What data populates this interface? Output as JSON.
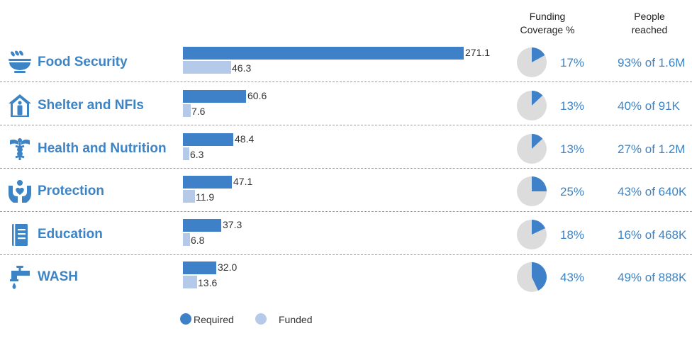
{
  "chart_data": {
    "type": "bar",
    "orientation": "horizontal",
    "categories": [
      "Food Security",
      "Shelter and NFIs",
      "Health and Nutrition",
      "Protection",
      "Education",
      "WASH"
    ],
    "series": [
      {
        "name": "Required",
        "values": [
          271.1,
          60.6,
          48.4,
          47.1,
          37.3,
          32.0
        ],
        "labels": [
          "271.1",
          "60.6",
          "48.4",
          "47.1",
          "37.3",
          "32.0"
        ],
        "color": "#3f81c9"
      },
      {
        "name": "Funded",
        "values": [
          46.3,
          7.6,
          6.3,
          11.9,
          6.8,
          13.6
        ],
        "labels": [
          "46.3",
          "7.6",
          "6.3",
          "11.9",
          "6.8",
          "13.6"
        ],
        "color": "#b5c9e8"
      }
    ],
    "xlim": [
      0,
      271.1
    ],
    "funding_coverage": {
      "header": "Funding Coverage %",
      "values": [
        17,
        13,
        13,
        25,
        18,
        43
      ],
      "labels": [
        "17%",
        "13%",
        "13%",
        "25%",
        "18%",
        "43%"
      ]
    },
    "people_reached": {
      "header": "People reached",
      "labels": [
        "93% of 1.6M",
        "40% of 91K",
        "27% of 1.2M",
        "43% of 640K",
        "16% of 468K",
        "49% of 888K"
      ]
    },
    "legend": [
      "Required",
      "Funded"
    ],
    "legend_position": "bottom",
    "grid": false
  },
  "icons": [
    "food-security-icon",
    "shelter-icon",
    "health-nutrition-icon",
    "protection-icon",
    "education-icon",
    "wash-icon"
  ],
  "colors": {
    "accent": "#3c84c6",
    "required": "#3f81c9",
    "funded": "#b5c9e8",
    "pie_bg": "#dcdcdc"
  }
}
